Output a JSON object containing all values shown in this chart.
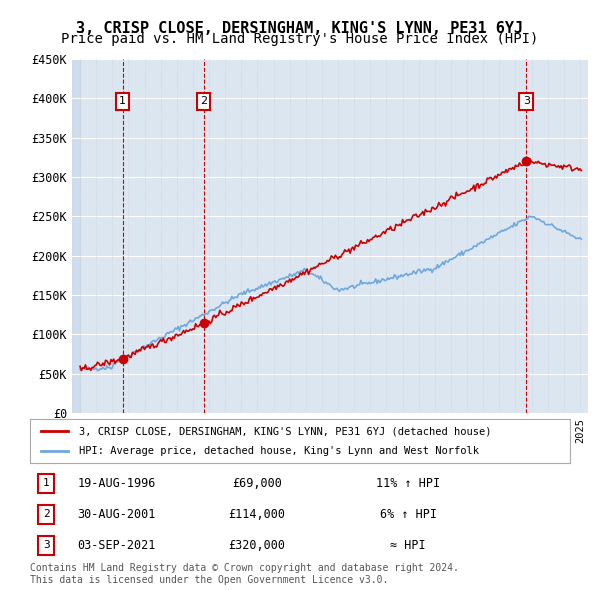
{
  "title": "3, CRISP CLOSE, DERSINGHAM, KING'S LYNN, PE31 6YJ",
  "subtitle": "Price paid vs. HM Land Registry's House Price Index (HPI)",
  "ylabel": "",
  "ylim": [
    0,
    450000
  ],
  "yticks": [
    0,
    50000,
    100000,
    150000,
    200000,
    250000,
    300000,
    350000,
    400000,
    450000
  ],
  "ytick_labels": [
    "£0",
    "£50K",
    "£100K",
    "£150K",
    "£200K",
    "£250K",
    "£300K",
    "£350K",
    "£400K",
    "£450K"
  ],
  "xlim_start": 1993.5,
  "xlim_end": 2025.5,
  "hpi_color": "#6fa8dc",
  "price_color": "#cc0000",
  "sale_marker_color": "#cc0000",
  "background_color": "#dce6f1",
  "hatch_color": "#b8cce4",
  "grid_color": "#ffffff",
  "annotation_box_color": "#cc0000",
  "sales": [
    {
      "num": 1,
      "year": 1996.64,
      "price": 69000,
      "label": "1",
      "date": "19-AUG-1996",
      "price_str": "£69,000",
      "hpi_str": "11% ↑ HPI"
    },
    {
      "num": 2,
      "year": 2001.66,
      "price": 114000,
      "label": "2",
      "date": "30-AUG-2001",
      "price_str": "£114,000",
      "hpi_str": "6% ↑ HPI"
    },
    {
      "num": 3,
      "year": 2021.67,
      "price": 320000,
      "label": "3",
      "date": "03-SEP-2021",
      "price_str": "£320,000",
      "hpi_str": "≈ HPI"
    }
  ],
  "legend_entries": [
    "3, CRISP CLOSE, DERSINGHAM, KING'S LYNN, PE31 6YJ (detached house)",
    "HPI: Average price, detached house, King's Lynn and West Norfolk"
  ],
  "footer_text": "Contains HM Land Registry data © Crown copyright and database right 2024.\nThis data is licensed under the Open Government Licence v3.0.",
  "title_fontsize": 11,
  "subtitle_fontsize": 10
}
